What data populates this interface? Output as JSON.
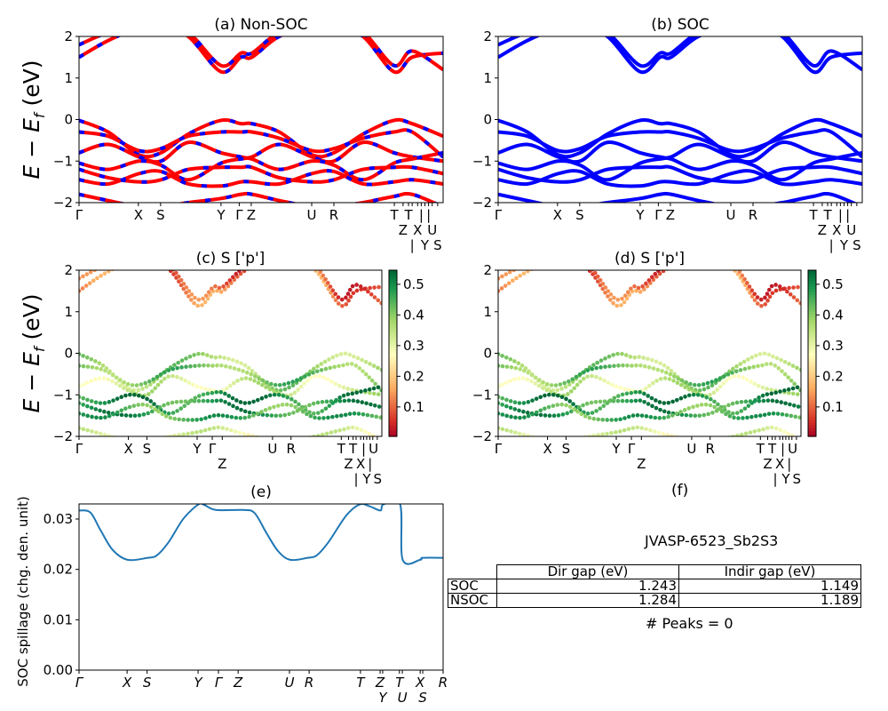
{
  "chart_data": [
    {
      "id": "a",
      "type": "line",
      "title": "(a) Non-SOC",
      "ylabel": {
        "main": "E − E",
        "sub": "f",
        "unit": " (eV)"
      },
      "ylim": [
        -2,
        2
      ],
      "yticks": [
        "2",
        "1",
        "0",
        "−1",
        "−2"
      ],
      "xtick_labels": [
        "Γ",
        "X",
        "S",
        "Y",
        "Γ",
        "Z",
        "U",
        "R",
        "T",
        "Z",
        "T",
        "|",
        "X",
        "|",
        "Y",
        "|",
        "U",
        "S"
      ],
      "colors": {
        "line": "#ff0000",
        "dash": "#0000ff"
      }
    },
    {
      "id": "b",
      "type": "line",
      "title": "(b) SOC",
      "ylim": [
        -2,
        2
      ],
      "yticks": [
        "2",
        "1",
        "0",
        "−1",
        "−2"
      ],
      "xtick_labels": [
        "Γ",
        "X",
        "S",
        "Y",
        "Γ",
        "Z",
        "U",
        "R",
        "T",
        "Z",
        "T",
        "|",
        "X",
        "|",
        "Y",
        "|",
        "U",
        "S"
      ],
      "colors": {
        "line": "#0000ff"
      }
    },
    {
      "id": "c",
      "type": "scatter",
      "title": "(c)  S ['p']",
      "ylabel": {
        "main": "E − E",
        "sub": "f",
        "unit": " (eV)"
      },
      "ylim": [
        -2,
        2
      ],
      "yticks": [
        "2",
        "1",
        "0",
        "−1",
        "−2"
      ],
      "xtick_labels": [
        "Γ",
        "X",
        "S",
        "Y",
        "Γ",
        "Z",
        "U",
        "R",
        "T",
        "Z",
        "T",
        "|",
        "X",
        "|",
        "Y",
        "|",
        "U",
        "S"
      ],
      "colorbar": {
        "range": [
          0.004,
          0.546
        ],
        "ticks": [
          "0.5",
          "0.4",
          "0.3",
          "0.2",
          "0.1"
        ],
        "colormap": "RdYlGn"
      }
    },
    {
      "id": "d",
      "type": "scatter",
      "title": "(d) S ['p']",
      "ylim": [
        -2,
        2
      ],
      "yticks": [
        "2",
        "1",
        "0",
        "−1",
        "−2"
      ],
      "xtick_labels": [
        "Γ",
        "X",
        "S",
        "Y",
        "Γ",
        "Z",
        "U",
        "R",
        "T",
        "Z",
        "T",
        "|",
        "X",
        "|",
        "Y",
        "|",
        "U",
        "S"
      ],
      "colorbar": {
        "range": [
          0.004,
          0.546
        ],
        "ticks": [
          "0.5",
          "0.4",
          "0.3",
          "0.2",
          "0.1"
        ],
        "colormap": "RdYlGn"
      }
    },
    {
      "id": "e",
      "type": "line",
      "title": "(e)",
      "ylabel": "SOC spillage (chg. den. unit)",
      "ylim": [
        0,
        0.033
      ],
      "yticks": [
        "0.00",
        "0.01",
        "0.02",
        "0.03"
      ],
      "xtick_labels": [
        "Γ",
        "X",
        "S",
        "Y",
        "Γ",
        "Z",
        "U",
        "R",
        "T",
        "Z",
        "Y",
        "T",
        "U",
        "X",
        "S",
        "R"
      ],
      "color": "#1f77b4",
      "x": [
        0,
        0.031,
        0.059,
        0.092,
        0.133,
        0.189,
        0.214,
        0.246,
        0.287,
        0.328,
        0.344,
        0.376,
        0.45,
        0.482,
        0.515,
        0.547,
        0.58,
        0.628,
        0.653,
        0.685,
        0.734,
        0.771,
        0.799,
        0.828,
        0.836,
        0.882,
        0.889,
        0.937,
        0.944,
        1.0
      ],
      "y": [
        0.0317,
        0.0313,
        0.0278,
        0.0239,
        0.0219,
        0.0223,
        0.0228,
        0.0254,
        0.0301,
        0.0329,
        0.0328,
        0.0318,
        0.0318,
        0.0312,
        0.0272,
        0.0236,
        0.0219,
        0.0223,
        0.0228,
        0.0254,
        0.0307,
        0.0329,
        0.0325,
        0.0317,
        0.0329,
        0.0329,
        0.0219,
        0.0219,
        0.0223,
        0.0223
      ]
    }
  ],
  "bands": {
    "k": [
      0,
      0.08,
      0.165,
      0.225,
      0.3,
      0.39,
      0.445,
      0.475,
      0.55,
      0.64,
      0.7,
      0.78,
      0.865,
      0.915,
      1.0
    ],
    "energies": [
      [
        1.5,
        1.9,
        2.2,
        2.2,
        2.0,
        1.15,
        1.5,
        1.5,
        2.0,
        2.2,
        2.2,
        2.0,
        1.15,
        1.5,
        1.6
      ],
      [
        1.8,
        2.1,
        2.3,
        2.3,
        2.1,
        1.3,
        1.6,
        1.6,
        2.1,
        2.3,
        2.3,
        2.1,
        1.3,
        1.65,
        1.2
      ],
      [
        -0.02,
        -0.3,
        -0.85,
        -0.8,
        -0.35,
        -0.02,
        -0.1,
        -0.1,
        -0.3,
        -0.85,
        -0.8,
        -0.35,
        -0.02,
        -0.1,
        -0.4
      ],
      [
        -0.3,
        -0.4,
        -0.75,
        -0.7,
        -0.4,
        -0.3,
        -0.3,
        -0.3,
        -0.45,
        -0.75,
        -0.7,
        -0.45,
        -0.3,
        -0.3,
        -0.9
      ],
      [
        -0.8,
        -0.6,
        -0.9,
        -1.0,
        -0.55,
        -0.8,
        -0.9,
        -0.9,
        -0.6,
        -0.9,
        -1.0,
        -0.55,
        -0.8,
        -0.9,
        -1.0
      ],
      [
        -1.05,
        -1.2,
        -1.0,
        -1.1,
        -1.45,
        -1.05,
        -0.95,
        -0.95,
        -1.2,
        -1.0,
        -1.1,
        -1.45,
        -1.05,
        -0.95,
        -0.8
      ],
      [
        -1.2,
        -1.4,
        -1.5,
        -1.45,
        -1.2,
        -1.15,
        -1.15,
        -1.15,
        -1.4,
        -1.5,
        -1.45,
        -1.2,
        -1.15,
        -1.15,
        -1.3
      ],
      [
        -1.45,
        -1.55,
        -1.3,
        -1.25,
        -1.55,
        -1.6,
        -1.5,
        -1.5,
        -1.55,
        -1.3,
        -1.25,
        -1.55,
        -1.5,
        -1.45,
        -1.55
      ],
      [
        -1.8,
        -1.95,
        -2.1,
        -2.1,
        -2.0,
        -1.9,
        -1.8,
        -1.8,
        -1.95,
        -2.1,
        -2.1,
        -2.0,
        -1.85,
        -1.8,
        -2.1
      ]
    ],
    "projection_weight": [
      0.12,
      0.09,
      0.38,
      0.42,
      0.33,
      0.5,
      0.48,
      0.45,
      0.3
    ]
  },
  "panel_f": {
    "title": "(f)",
    "material": "JVASP-6523_Sb2S3",
    "table": {
      "headers": [
        "",
        "Dir gap (eV)",
        "Indir gap (eV)"
      ],
      "rows": [
        {
          "label": "SOC",
          "dir": "1.243",
          "indir": "1.149"
        },
        {
          "label": "NSOC",
          "dir": "1.284",
          "indir": "1.189"
        }
      ]
    },
    "peaks": "# Peaks = 0"
  }
}
